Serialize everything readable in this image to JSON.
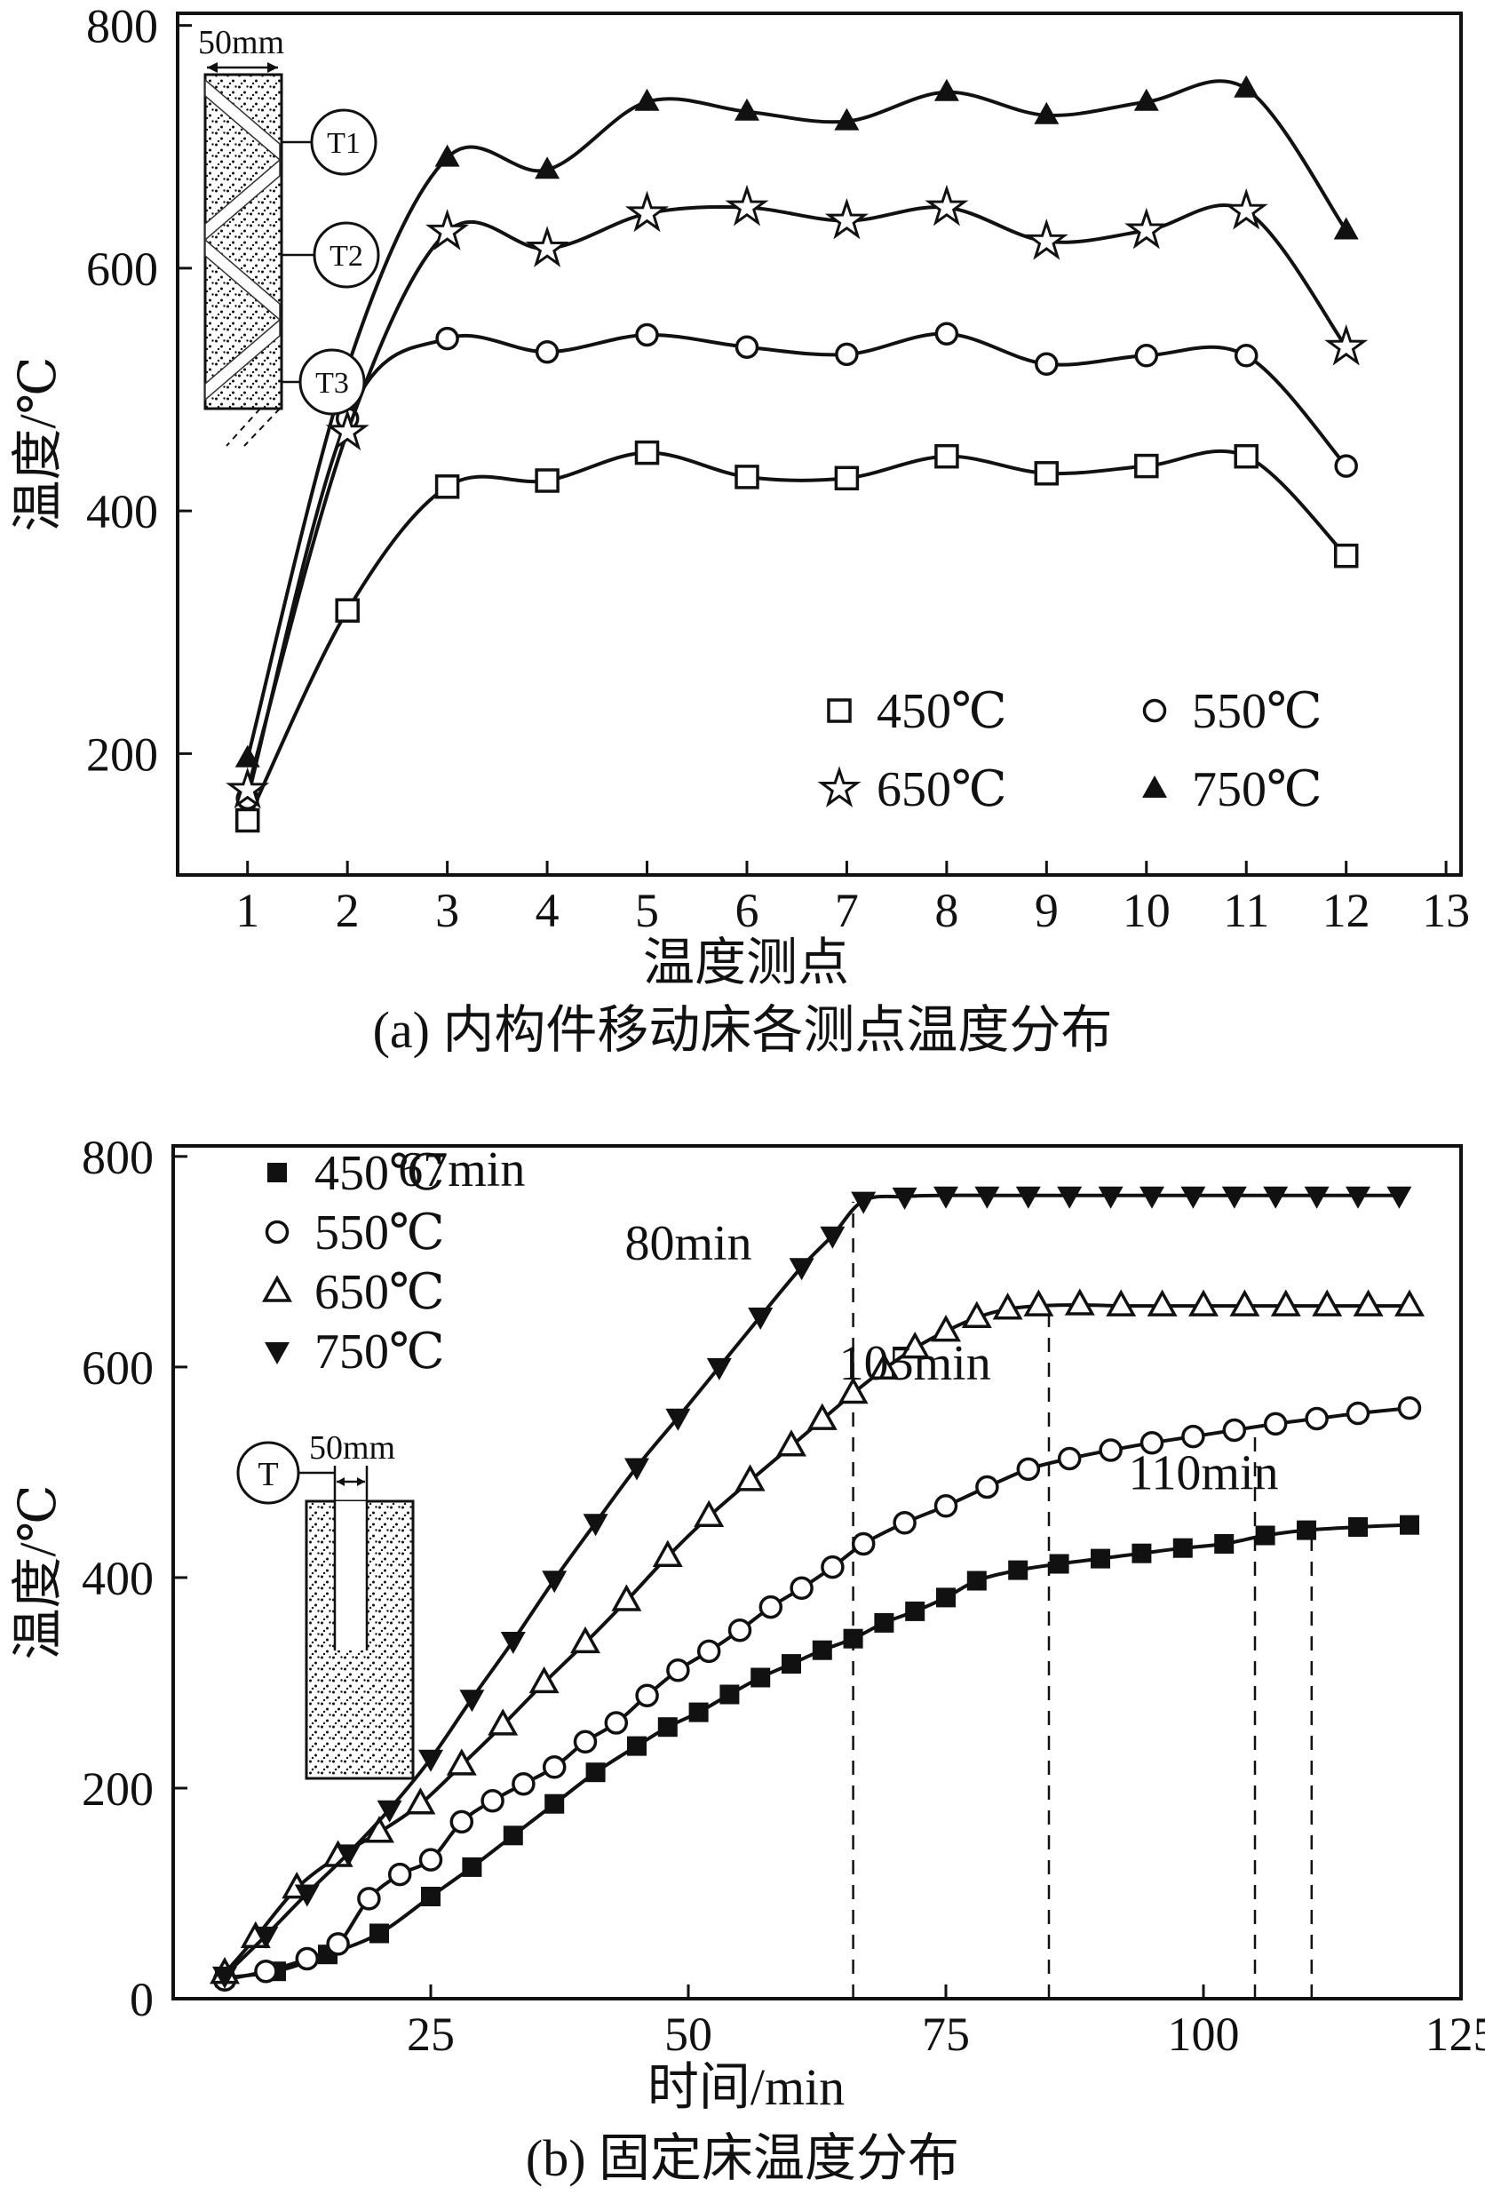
{
  "colors": {
    "ink": "#111111",
    "paper": "#ffffff"
  },
  "insets": {
    "a": {
      "width_label": "50mm",
      "probes": [
        "T1",
        "T2",
        "T3"
      ]
    },
    "b": {
      "width_label": "50mm",
      "probe": "T"
    }
  },
  "chart_data": [
    {
      "id": "panel-a",
      "type": "line",
      "title": "",
      "xlabel": "温度测点",
      "ylabel": "温度/℃",
      "caption": "(a) 内构件移动床各测点温度分布",
      "xlim": [
        0.3,
        13.15
      ],
      "ylim": [
        100,
        810
      ],
      "xticks": [
        1,
        2,
        3,
        4,
        5,
        6,
        7,
        8,
        9,
        10,
        11,
        12,
        13
      ],
      "yticks": [
        200,
        400,
        600,
        800
      ],
      "grid": false,
      "legend": {
        "position": "bottom-right",
        "cols": 2
      },
      "series": [
        {
          "name": "450℃",
          "marker": "square-open",
          "points": [
            [
              1,
              145
            ],
            [
              2,
              318
            ],
            [
              3,
              420
            ],
            [
              4,
              425
            ],
            [
              5,
              448
            ],
            [
              6,
              428
            ],
            [
              7,
              427
            ],
            [
              8,
              445
            ],
            [
              9,
              431
            ],
            [
              10,
              437
            ],
            [
              11,
              445
            ],
            [
              12,
              363
            ]
          ]
        },
        {
          "name": "550℃",
          "marker": "circle-open",
          "points": [
            [
              1,
              163
            ],
            [
              2,
              476
            ],
            [
              3,
              542
            ],
            [
              4,
              531
            ],
            [
              5,
              545
            ],
            [
              6,
              535
            ],
            [
              7,
              529
            ],
            [
              8,
              546
            ],
            [
              9,
              521
            ],
            [
              10,
              528
            ],
            [
              11,
              528
            ],
            [
              12,
              437
            ]
          ]
        },
        {
          "name": "650℃",
          "marker": "star-open",
          "points": [
            [
              1,
              170
            ],
            [
              2,
              465
            ],
            [
              3,
              630
            ],
            [
              4,
              616
            ],
            [
              5,
              645
            ],
            [
              6,
              650
            ],
            [
              7,
              639
            ],
            [
              8,
              650
            ],
            [
              9,
              622
            ],
            [
              10,
              631
            ],
            [
              11,
              647
            ],
            [
              12,
              535
            ]
          ]
        },
        {
          "name": "750℃",
          "marker": "triangle-up-filled",
          "points": [
            [
              1,
              196
            ],
            [
              2,
              518
            ],
            [
              3,
              691
            ],
            [
              4,
              681
            ],
            [
              5,
              737
            ],
            [
              6,
              729
            ],
            [
              7,
              721
            ],
            [
              8,
              745
            ],
            [
              9,
              726
            ],
            [
              10,
              737
            ],
            [
              11,
              748
            ],
            [
              12,
              631
            ]
          ]
        }
      ],
      "annotations": []
    },
    {
      "id": "panel-b",
      "type": "line",
      "title": "",
      "xlabel": "时间/min",
      "ylabel": "温度/℃",
      "caption": "(b) 固定床温度分布",
      "xlim": [
        0,
        125
      ],
      "ylim": [
        0,
        810
      ],
      "xticks": [
        25,
        50,
        75,
        100,
        125
      ],
      "yticks": [
        0,
        200,
        400,
        600,
        800
      ],
      "grid": false,
      "legend": {
        "position": "top-left",
        "cols": 1
      },
      "series": [
        {
          "name": "450℃",
          "marker": "square-filled",
          "points": [
            [
              5,
              20
            ],
            [
              10,
              26
            ],
            [
              15,
              42
            ],
            [
              20,
              62
            ],
            [
              25,
              97
            ],
            [
              29,
              125
            ],
            [
              33,
              155
            ],
            [
              37,
              185
            ],
            [
              41,
              215
            ],
            [
              45,
              240
            ],
            [
              48,
              258
            ],
            [
              51,
              272
            ],
            [
              54,
              289
            ],
            [
              57,
              305
            ],
            [
              60,
              318
            ],
            [
              63,
              331
            ],
            [
              66,
              342
            ],
            [
              69,
              357
            ],
            [
              72,
              368
            ],
            [
              75,
              381
            ],
            [
              78,
              397
            ],
            [
              82,
              407
            ],
            [
              86,
              413
            ],
            [
              90,
              418
            ],
            [
              94,
              423
            ],
            [
              98,
              428
            ],
            [
              102,
              432
            ],
            [
              106,
              440
            ],
            [
              110,
              445
            ],
            [
              115,
              448
            ],
            [
              120,
              450
            ]
          ]
        },
        {
          "name": "550℃",
          "marker": "circle-open",
          "points": [
            [
              5,
              18
            ],
            [
              9,
              26
            ],
            [
              13,
              38
            ],
            [
              16,
              52
            ],
            [
              19,
              95
            ],
            [
              22,
              118
            ],
            [
              25,
              132
            ],
            [
              28,
              168
            ],
            [
              31,
              188
            ],
            [
              34,
              204
            ],
            [
              37,
              220
            ],
            [
              40,
              244
            ],
            [
              43,
              262
            ],
            [
              46,
              288
            ],
            [
              49,
              312
            ],
            [
              52,
              330
            ],
            [
              55,
              350
            ],
            [
              58,
              372
            ],
            [
              61,
              390
            ],
            [
              64,
              410
            ],
            [
              67,
              432
            ],
            [
              71,
              452
            ],
            [
              75,
              468
            ],
            [
              79,
              486
            ],
            [
              83,
              503
            ],
            [
              87,
              513
            ],
            [
              91,
              521
            ],
            [
              95,
              528
            ],
            [
              99,
              534
            ],
            [
              103,
              540
            ],
            [
              107,
              546
            ],
            [
              111,
              551
            ],
            [
              115,
              556
            ],
            [
              120,
              561
            ]
          ]
        },
        {
          "name": "650℃",
          "marker": "triangle-up-open",
          "points": [
            [
              5,
              24
            ],
            [
              8,
              58
            ],
            [
              12,
              105
            ],
            [
              16,
              135
            ],
            [
              20,
              158
            ],
            [
              24,
              185
            ],
            [
              28,
              222
            ],
            [
              32,
              260
            ],
            [
              36,
              300
            ],
            [
              40,
              338
            ],
            [
              44,
              378
            ],
            [
              48,
              420
            ],
            [
              52,
              458
            ],
            [
              56,
              492
            ],
            [
              60,
              525
            ],
            [
              63,
              550
            ],
            [
              66,
              575
            ],
            [
              69,
              598
            ],
            [
              72,
              618
            ],
            [
              75,
              634
            ],
            [
              78,
              647
            ],
            [
              81,
              655
            ],
            [
              84,
              658
            ],
            [
              88,
              659
            ],
            [
              92,
              658
            ],
            [
              96,
              658
            ],
            [
              100,
              658
            ],
            [
              104,
              658
            ],
            [
              108,
              658
            ],
            [
              112,
              658
            ],
            [
              116,
              658
            ],
            [
              120,
              658
            ]
          ]
        },
        {
          "name": "750℃",
          "marker": "triangle-down-filled",
          "points": [
            [
              5,
              22
            ],
            [
              9,
              60
            ],
            [
              13,
              100
            ],
            [
              17,
              138
            ],
            [
              21,
              180
            ],
            [
              25,
              228
            ],
            [
              29,
              285
            ],
            [
              33,
              340
            ],
            [
              37,
              398
            ],
            [
              41,
              452
            ],
            [
              45,
              505
            ],
            [
              49,
              552
            ],
            [
              53,
              600
            ],
            [
              57,
              648
            ],
            [
              61,
              695
            ],
            [
              64,
              725
            ],
            [
              67,
              758
            ],
            [
              71,
              762
            ],
            [
              75,
              763
            ],
            [
              79,
              763
            ],
            [
              83,
              763
            ],
            [
              87,
              763
            ],
            [
              91,
              763
            ],
            [
              95,
              763
            ],
            [
              99,
              763
            ],
            [
              103,
              763
            ],
            [
              107,
              763
            ],
            [
              111,
              763
            ],
            [
              115,
              763
            ],
            [
              119,
              763
            ]
          ]
        }
      ],
      "annotations": [
        {
          "text": "67min",
          "tx": 28,
          "ty": 772,
          "lx": 66,
          "ltop": 757
        },
        {
          "text": "80min",
          "tx": 50,
          "ty": 702,
          "lx": 85,
          "ltop": 656
        },
        {
          "text": "105min",
          "tx": 72,
          "ty": 588,
          "lx": 105,
          "ltop": 541
        },
        {
          "text": "110min",
          "tx": 100,
          "ty": 484,
          "lx": 110.5,
          "ltop": 448
        }
      ]
    }
  ]
}
